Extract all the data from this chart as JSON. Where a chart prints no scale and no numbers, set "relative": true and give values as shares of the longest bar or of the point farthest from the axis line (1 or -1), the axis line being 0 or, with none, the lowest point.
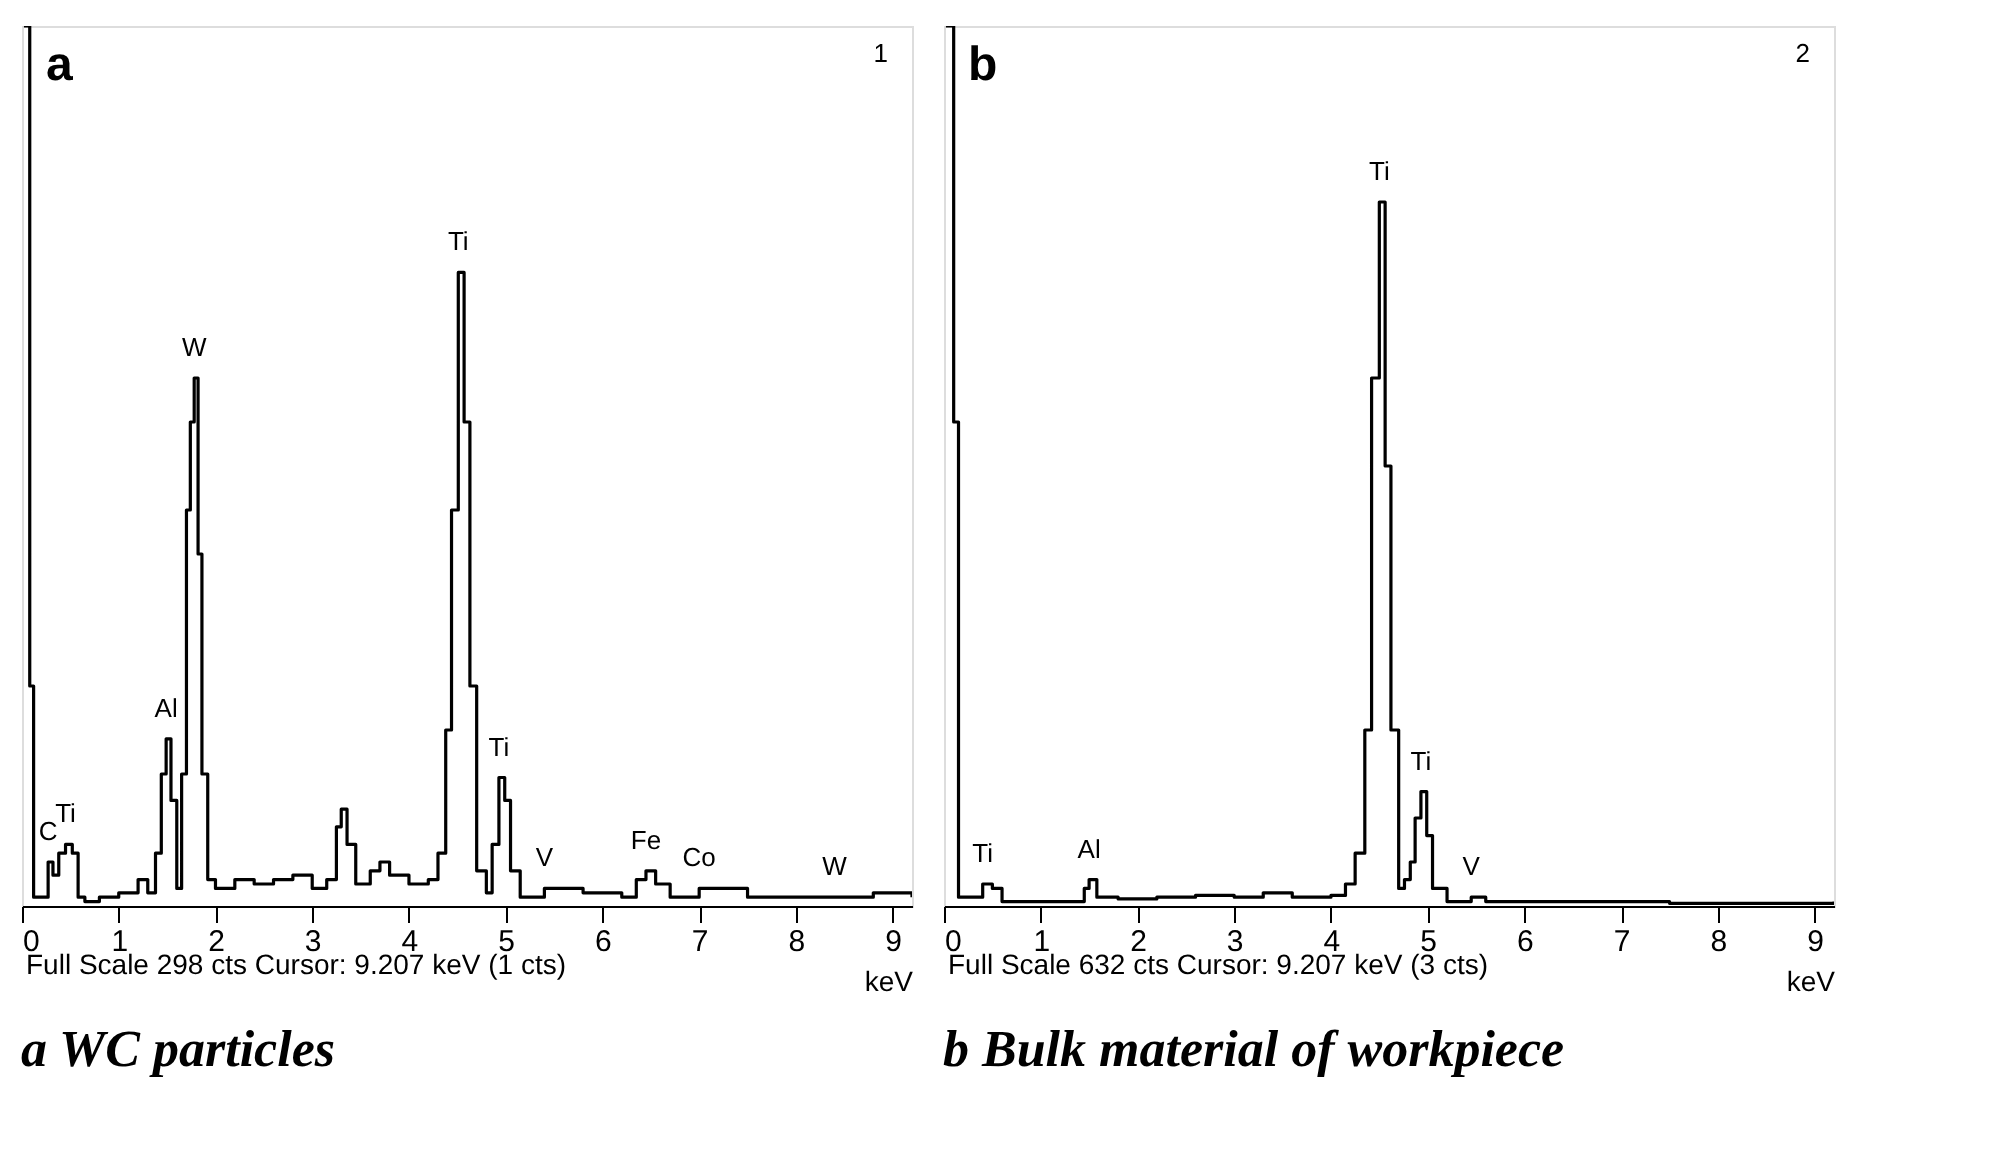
{
  "chart_data": [
    {
      "type": "step",
      "title": "a WC particles",
      "xlabel": "keV",
      "relative": true,
      "grid": false,
      "annotations": [
        "a",
        "1",
        "Full Scale 298 cts  Cursor: 9.207 keV (1 cts)",
        {
          "text": "C",
          "x": 0.27,
          "y": 0.05
        },
        {
          "text": "Ti",
          "x": 0.45,
          "y": 0.07
        },
        {
          "text": "Al",
          "x": 1.49,
          "y": 0.19
        },
        {
          "text": "W",
          "x": 1.78,
          "y": 0.6
        },
        {
          "text": "Ti",
          "x": 4.51,
          "y": 0.72
        },
        {
          "text": "Ti",
          "x": 4.93,
          "y": 0.146
        },
        {
          "text": "V",
          "x": 5.4,
          "y": 0.02
        },
        {
          "text": "Fe",
          "x": 6.45,
          "y": 0.04
        },
        {
          "text": "Co",
          "x": 7.0,
          "y": 0.02
        },
        {
          "text": "W",
          "x": 8.4,
          "y": 0.01
        }
      ],
      "xlim": [
        0,
        9.2
      ],
      "xticks": [
        0,
        1,
        2,
        3,
        4,
        5,
        6,
        7,
        8,
        9
      ],
      "x": [
        0.02,
        0.08,
        0.12,
        0.16,
        0.22,
        0.27,
        0.32,
        0.38,
        0.45,
        0.52,
        0.58,
        0.65,
        0.8,
        1.0,
        1.2,
        1.3,
        1.38,
        1.44,
        1.49,
        1.54,
        1.6,
        1.65,
        1.7,
        1.74,
        1.78,
        1.82,
        1.86,
        1.92,
        2.0,
        2.2,
        2.4,
        2.6,
        2.8,
        3.0,
        3.15,
        3.25,
        3.3,
        3.36,
        3.45,
        3.6,
        3.7,
        3.8,
        4.0,
        4.2,
        4.3,
        4.38,
        4.44,
        4.51,
        4.57,
        4.63,
        4.7,
        4.8,
        4.86,
        4.93,
        4.99,
        5.05,
        5.15,
        5.4,
        5.8,
        6.2,
        6.35,
        6.45,
        6.55,
        6.7,
        7.0,
        7.2,
        7.5,
        8.0,
        8.5,
        8.8,
        9.2
      ],
      "series": [
        {
          "color": "#000000",
          "values": [
            1,
            0.25,
            0.01,
            0.01,
            0.01,
            0.05,
            0.035,
            0.06,
            0.07,
            0.06,
            0.01,
            0.005,
            0.01,
            0.015,
            0.03,
            0.015,
            0.06,
            0.15,
            0.19,
            0.12,
            0.02,
            0.15,
            0.45,
            0.55,
            0.6,
            0.4,
            0.15,
            0.03,
            0.02,
            0.03,
            0.025,
            0.03,
            0.035,
            0.02,
            0.03,
            0.09,
            0.11,
            0.07,
            0.025,
            0.04,
            0.05,
            0.035,
            0.025,
            0.03,
            0.06,
            0.2,
            0.45,
            0.72,
            0.55,
            0.25,
            0.04,
            0.015,
            0.07,
            0.146,
            0.12,
            0.04,
            0.01,
            0.02,
            0.015,
            0.01,
            0.03,
            0.04,
            0.025,
            0.01,
            0.02,
            0.02,
            0.01,
            0.01,
            0.01,
            0.015,
            0.01
          ]
        }
      ]
    },
    {
      "type": "step",
      "title": "b Bulk material of workpiece",
      "xlabel": "keV",
      "relative": true,
      "grid": false,
      "annotations": [
        "b",
        "2",
        "Full Scale 632 cts  Cursor: 9.207 keV (3 cts)",
        {
          "text": "Ti",
          "x": 0.4,
          "y": 0.025
        },
        {
          "text": "Al",
          "x": 1.5,
          "y": 0.03
        },
        {
          "text": "Ti",
          "x": 4.5,
          "y": 0.8
        },
        {
          "text": "Ti",
          "x": 4.93,
          "y": 0.13
        },
        {
          "text": "V",
          "x": 5.45,
          "y": 0.01
        }
      ],
      "xlim": [
        0,
        9.2
      ],
      "xticks": [
        0,
        1,
        2,
        3,
        4,
        5,
        6,
        7,
        8,
        9
      ],
      "x": [
        0.02,
        0.1,
        0.15,
        0.3,
        0.4,
        0.5,
        0.6,
        0.8,
        1.2,
        1.45,
        1.5,
        1.58,
        1.8,
        2.2,
        2.6,
        3.0,
        3.3,
        3.6,
        4.0,
        4.15,
        4.25,
        4.35,
        4.42,
        4.5,
        4.56,
        4.62,
        4.7,
        4.76,
        4.82,
        4.87,
        4.93,
        4.99,
        5.05,
        5.2,
        5.45,
        5.6,
        6.5,
        7.5,
        8.5,
        9.2
      ],
      "series": [
        {
          "color": "#000000",
          "values": [
            1,
            0.55,
            0.01,
            0.01,
            0.025,
            0.02,
            0.005,
            0.005,
            0.005,
            0.02,
            0.03,
            0.01,
            0.008,
            0.01,
            0.012,
            0.01,
            0.015,
            0.01,
            0.012,
            0.025,
            0.06,
            0.2,
            0.6,
            0.8,
            0.5,
            0.2,
            0.02,
            0.03,
            0.05,
            0.1,
            0.13,
            0.08,
            0.02,
            0.005,
            0.01,
            0.005,
            0.005,
            0.003,
            0.003,
            0.005
          ]
        }
      ]
    }
  ]
}
